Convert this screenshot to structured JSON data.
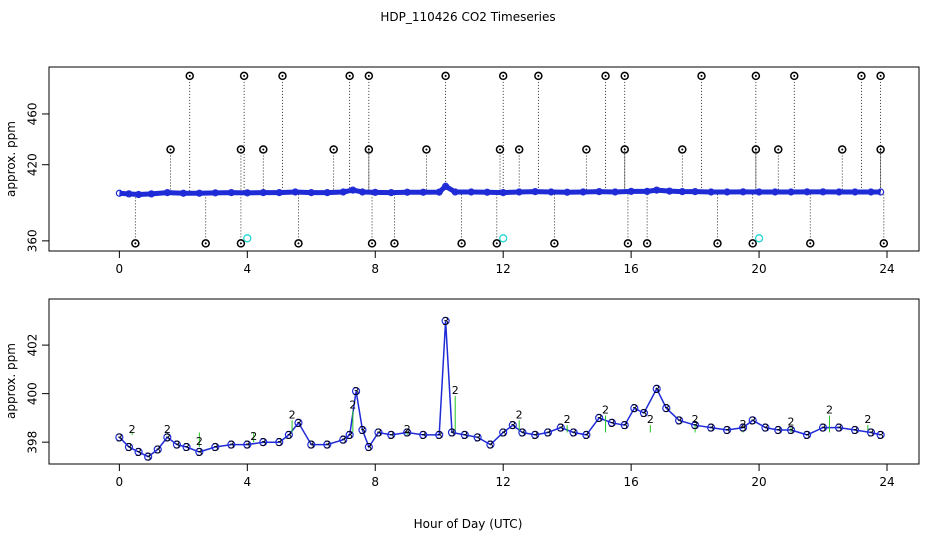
{
  "title": "HDP_110426  CO2 Timeseries",
  "xlabel": "Hour of Day (UTC)",
  "chart_data": [
    {
      "type": "scatter",
      "ylabel": "approx. ppm",
      "xlim": [
        -2.2,
        25
      ],
      "ylim": [
        352,
        497
      ],
      "xticks": [
        0,
        4,
        8,
        12,
        16,
        20,
        24
      ],
      "yticks": [
        360,
        420,
        460
      ],
      "ytick_labels": [
        "360",
        "420",
        "460"
      ],
      "series": [
        {
          "kind": "baseline",
          "color": "#1f2bd6",
          "x": [
            0,
            0.3,
            0.6,
            1,
            1.5,
            2,
            2.5,
            3,
            3.5,
            4,
            4.5,
            5,
            5.5,
            6,
            6.5,
            7,
            7.3,
            7.6,
            8,
            8.5,
            9,
            9.5,
            10,
            10.2,
            10.5,
            11,
            11.5,
            12,
            12.5,
            13,
            13.5,
            14,
            14.5,
            15,
            15.5,
            16,
            16.5,
            16.8,
            17.2,
            17.6,
            18,
            18.5,
            19,
            19.5,
            20,
            20.5,
            21,
            21.5,
            22,
            22.5,
            23,
            23.5,
            23.8
          ],
          "y": [
            397.5,
            397,
            396.5,
            397,
            398,
            397.5,
            397.5,
            397.8,
            398,
            397.8,
            398,
            398,
            398.5,
            398,
            398,
            398.5,
            400,
            398.5,
            398.2,
            398,
            398.3,
            398.3,
            398.4,
            403,
            398.5,
            398.5,
            398.3,
            398,
            398.5,
            398.8,
            398.5,
            398.3,
            398.5,
            398.8,
            398.5,
            399,
            399,
            400,
            399.2,
            398.8,
            398.8,
            398.5,
            398.5,
            398.6,
            398.5,
            398.5,
            398.5,
            398.6,
            398.6,
            398.5,
            398.5,
            398.5,
            398.5
          ]
        },
        {
          "kind": "outlier-high",
          "color": "#000000",
          "x": [
            2.2,
            3.9,
            5.1,
            7.2,
            7.8,
            10.2,
            12,
            13.1,
            15.2,
            15.8,
            18.2,
            19.9,
            21.1,
            23.2,
            23.8
          ],
          "y": [
            490,
            490,
            490,
            490,
            490,
            490,
            490,
            490,
            490,
            490,
            490,
            490,
            490,
            490,
            490
          ]
        },
        {
          "kind": "outlier-mid",
          "color": "#000000",
          "x": [
            1.6,
            3.8,
            4.5,
            6.7,
            7.8,
            9.6,
            11.9,
            12.5,
            14.6,
            15.8,
            17.6,
            19.9,
            20.6,
            22.6,
            23.8
          ],
          "y": [
            432,
            432,
            432,
            432,
            432,
            432,
            432,
            432,
            432,
            432,
            432,
            432,
            432,
            432,
            432
          ]
        },
        {
          "kind": "outlier-low",
          "color": "#000000",
          "x": [
            0.5,
            2.7,
            3.8,
            5.6,
            7.9,
            8.6,
            10.7,
            11.8,
            13.6,
            15.9,
            16.5,
            18.7,
            19.8,
            21.6,
            23.9
          ],
          "y": [
            358,
            358,
            358,
            358,
            358,
            358,
            358,
            358,
            358,
            358,
            358,
            358,
            358,
            358,
            358
          ]
        },
        {
          "kind": "cyan",
          "color": "#1fd6d6",
          "x": [
            4,
            12,
            20
          ],
          "y": [
            362,
            362,
            362
          ]
        }
      ]
    },
    {
      "type": "line",
      "ylabel": "approx. ppm",
      "xlim": [
        -2.2,
        25
      ],
      "ylim": [
        397.1,
        403.9
      ],
      "xticks": [
        0,
        4,
        8,
        12,
        16,
        20,
        24
      ],
      "yticks": [
        398,
        400,
        402
      ],
      "ytick_labels": [
        "398",
        "400",
        "402"
      ],
      "series": [
        {
          "name": "3",
          "color": "#1f2bd6",
          "x": [
            0,
            0.3,
            0.6,
            0.9,
            1.2,
            1.5,
            1.8,
            2.1,
            2.5,
            3,
            3.5,
            4,
            4.5,
            5,
            5.3,
            5.6,
            6,
            6.5,
            7,
            7.2,
            7.4,
            7.6,
            7.8,
            8.1,
            8.5,
            9,
            9.5,
            10,
            10.2,
            10.4,
            10.8,
            11.2,
            11.6,
            12,
            12.3,
            12.6,
            13,
            13.4,
            13.8,
            14.2,
            14.6,
            15,
            15.4,
            15.8,
            16.1,
            16.4,
            16.8,
            17.1,
            17.5,
            18,
            18.5,
            19,
            19.5,
            19.8,
            20.2,
            20.6,
            21,
            21.5,
            22,
            22.5,
            23,
            23.5,
            23.8
          ],
          "y": [
            398.2,
            397.8,
            397.6,
            397.4,
            397.7,
            398.2,
            397.9,
            397.8,
            397.6,
            397.8,
            397.9,
            397.9,
            398,
            398,
            398.3,
            398.8,
            397.9,
            397.9,
            398.1,
            398.3,
            400.1,
            398.5,
            397.8,
            398.4,
            398.3,
            398.4,
            398.3,
            398.3,
            403,
            398.4,
            398.3,
            398.2,
            397.9,
            398.4,
            398.7,
            398.4,
            398.3,
            398.4,
            398.6,
            398.4,
            398.3,
            399,
            398.8,
            398.7,
            399.4,
            399.2,
            400.2,
            399.4,
            398.9,
            398.7,
            398.6,
            398.5,
            398.6,
            398.9,
            398.6,
            398.5,
            398.5,
            398.3,
            398.6,
            398.6,
            398.5,
            398.4,
            398.3
          ]
        },
        {
          "name": "2",
          "color": "#1fc41f",
          "x": [
            0.4,
            1.5,
            2.5,
            4.2,
            5.4,
            7.3,
            9,
            10.5,
            12.5,
            14,
            15.2,
            16.6,
            18,
            19.5,
            21,
            22.2,
            23.4
          ],
          "y": [
            398.3,
            398.3,
            397.8,
            398,
            398.9,
            399.3,
            398.3,
            399.9,
            398.9,
            398.7,
            399.1,
            398.7,
            398.7,
            398.5,
            398.6,
            399.1,
            398.7
          ]
        }
      ]
    }
  ]
}
